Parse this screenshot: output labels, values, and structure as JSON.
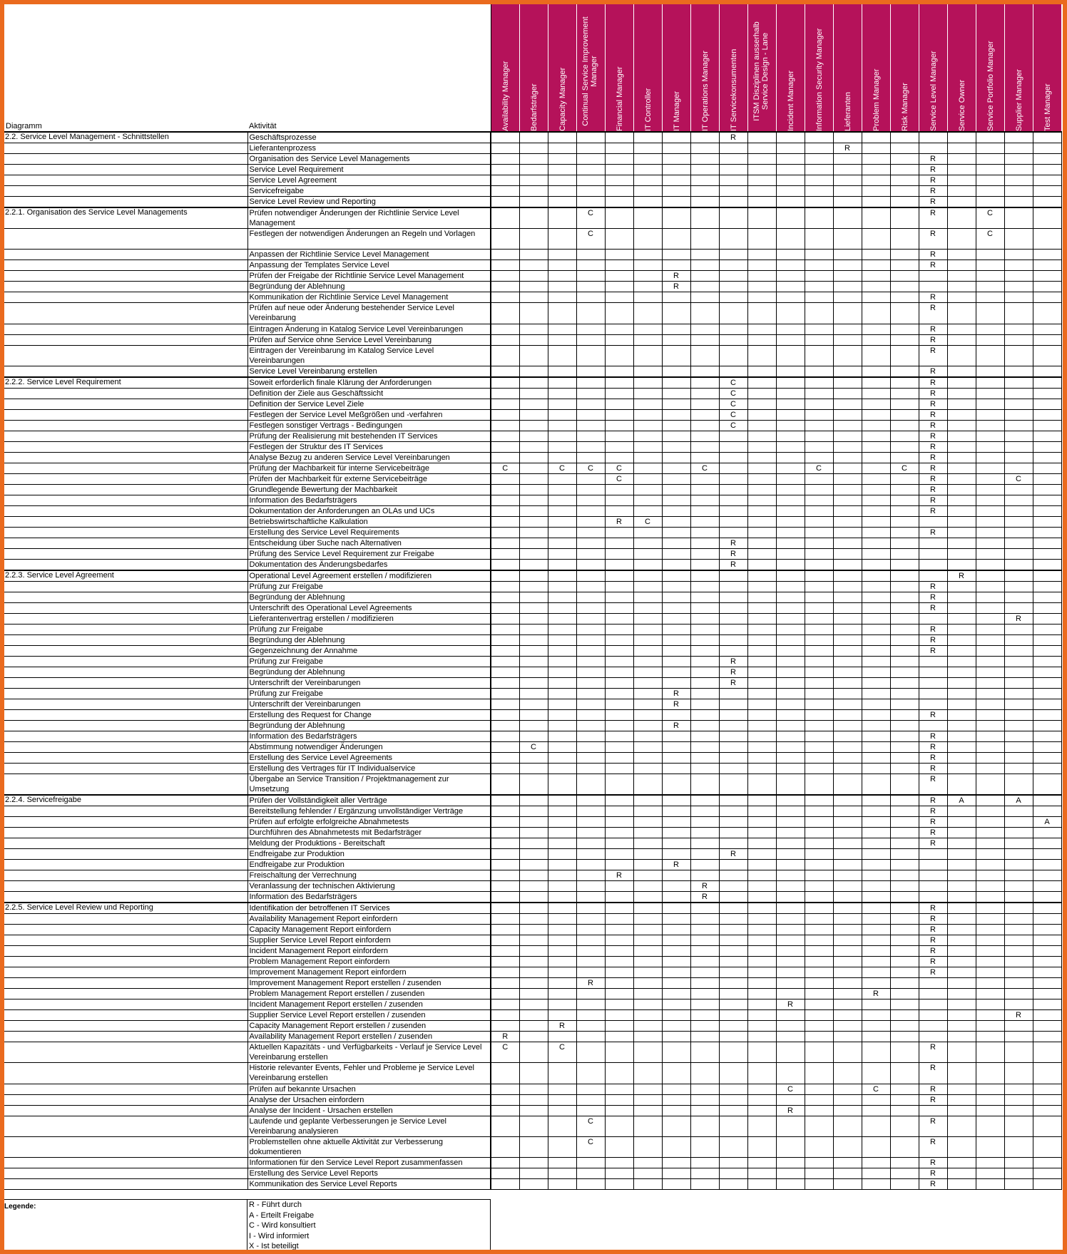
{
  "colors": {
    "frame": "#ea6a1e",
    "header_bg": "#b5125a",
    "header_text": "#ffffff"
  },
  "headers": {
    "diagram": "Diagramm",
    "activity": "Aktivität"
  },
  "roles": [
    "Availability Manager",
    "Bedarfsträger",
    "Capacity Manager",
    "Continual Service Improvement Manager",
    "Financial Manager",
    "IT Controller",
    "IT Manager",
    "IT Operations Manager",
    "IT Servicekonsumenten",
    "ITSM Disziplinen ausserhalb Service Design - Lane",
    "Incident Manager",
    "Information Security Manager",
    "Lieferanten",
    "Problem Manager",
    "Risk Manager",
    "Service Level Manager",
    "Service Owner",
    "Service Portfolio Manager",
    "Supplier Manager",
    "Test Manager"
  ],
  "rows": [
    {
      "d": "2.2. Service Level Management - Schnittstellen",
      "a": "Geschäftsprozesse",
      "r": {
        "8": "R"
      },
      "s": 1
    },
    {
      "d": "",
      "a": "Lieferantenprozess",
      "r": {
        "12": "R"
      }
    },
    {
      "d": "",
      "a": "Organisation des Service Level Managements",
      "r": {
        "15": "R"
      }
    },
    {
      "d": "",
      "a": "Service Level Requirement",
      "r": {
        "15": "R"
      }
    },
    {
      "d": "",
      "a": "Service Level Agreement",
      "r": {
        "15": "R"
      }
    },
    {
      "d": "",
      "a": "Servicefreigabe",
      "r": {
        "15": "R"
      }
    },
    {
      "d": "",
      "a": "Service Level Review und Reporting",
      "r": {
        "15": "R"
      }
    },
    {
      "d": "2.2.1. Organisation des Service Level Managements",
      "a": "Prüfen notwendiger Änderungen der Richtlinie Service Level Management",
      "r": {
        "3": "C",
        "15": "R",
        "17": "C"
      },
      "h": 2,
      "s": 1
    },
    {
      "d": "",
      "a": "Festlegen der notwendigen Änderungen an Regeln und Vorlagen",
      "r": {
        "3": "C",
        "15": "R",
        "17": "C"
      },
      "h": 2
    },
    {
      "d": "",
      "a": "Anpassen der Richtlinie Service Level Management",
      "r": {
        "15": "R"
      }
    },
    {
      "d": "",
      "a": "Anpassung der Templates Service Level",
      "r": {
        "15": "R"
      }
    },
    {
      "d": "",
      "a": "Prüfen der Freigabe der Richtlinie Service Level Management",
      "r": {
        "6": "R"
      }
    },
    {
      "d": "",
      "a": "Begründung der Ablehnung",
      "r": {
        "6": "R"
      }
    },
    {
      "d": "",
      "a": "Kommunikation der Richtlinie Service Level Management",
      "r": {
        "15": "R"
      }
    },
    {
      "d": "",
      "a": "Prüfen auf neue oder Änderung bestehender Service Level Vereinbarung",
      "r": {
        "15": "R"
      },
      "h": 2
    },
    {
      "d": "",
      "a": "Eintragen Änderung in Katalog Service Level Vereinbarungen",
      "r": {
        "15": "R"
      }
    },
    {
      "d": "",
      "a": "Prüfen auf Service ohne Service Level Vereinbarung",
      "r": {
        "15": "R"
      }
    },
    {
      "d": "",
      "a": "Eintragen der Vereinbarung im Katalog Service Level Vereinbarungen",
      "r": {
        "15": "R"
      },
      "h": 2
    },
    {
      "d": "",
      "a": "Service Level Vereinbarung erstellen",
      "r": {
        "15": "R"
      }
    },
    {
      "d": "2.2.2. Service Level Requirement",
      "a": "Soweit erforderlich finale Klärung der Anforderungen",
      "r": {
        "8": "C",
        "15": "R"
      },
      "s": 1
    },
    {
      "d": "",
      "a": "Definition der Ziele aus Geschäftssicht",
      "r": {
        "8": "C",
        "15": "R"
      }
    },
    {
      "d": "",
      "a": "Definition der Service Level Ziele",
      "r": {
        "8": "C",
        "15": "R"
      }
    },
    {
      "d": "",
      "a": "Festlegen der Service Level Meßgrößen und -verfahren",
      "r": {
        "8": "C",
        "15": "R"
      }
    },
    {
      "d": "",
      "a": "Festlegen sonstiger Vertrags - Bedingungen",
      "r": {
        "8": "C",
        "15": "R"
      }
    },
    {
      "d": "",
      "a": "Prüfung der Realisierung mit bestehenden IT Services",
      "r": {
        "15": "R"
      }
    },
    {
      "d": "",
      "a": "Festlegen der Struktur des IT Services",
      "r": {
        "15": "R"
      }
    },
    {
      "d": "",
      "a": "Analyse Bezug zu anderen Service Level Vereinbarungen",
      "r": {
        "15": "R"
      }
    },
    {
      "d": "",
      "a": "Prüfung der Machbarkeit für interne Servicebeiträge",
      "r": {
        "0": "C",
        "2": "C",
        "3": "C",
        "4": "C",
        "7": "C",
        "11": "C",
        "14": "C",
        "15": "R"
      }
    },
    {
      "d": "",
      "a": "Prüfen der Machbarkeit für externe Servicebeiträge",
      "r": {
        "4": "C",
        "15": "R",
        "18": "C"
      }
    },
    {
      "d": "",
      "a": "Grundlegende Bewertung der  Machbarkeit",
      "r": {
        "15": "R"
      }
    },
    {
      "d": "",
      "a": "Information des  Bedarfsträgers",
      "r": {
        "15": "R"
      }
    },
    {
      "d": "",
      "a": "Dokumentation der Anforderungen  an OLAs und UCs",
      "r": {
        "15": "R"
      }
    },
    {
      "d": "",
      "a": "Betriebswirtschaftliche Kalkulation",
      "r": {
        "4": "R",
        "5": "C"
      }
    },
    {
      "d": "",
      "a": "Erstellung des Service Level Requirements",
      "r": {
        "15": "R"
      }
    },
    {
      "d": "",
      "a": "Entscheidung über Suche nach Alternativen",
      "r": {
        "8": "R"
      }
    },
    {
      "d": "",
      "a": "Prüfung des Service Level Requirement zur Freigabe",
      "r": {
        "8": "R"
      }
    },
    {
      "d": "",
      "a": "Dokumentation des  Änderungsbedarfes",
      "r": {
        "8": "R"
      }
    },
    {
      "d": "2.2.3. Service Level Agreement",
      "a": "Operational Level Agreement erstellen / modifizieren",
      "r": {
        "16": "R"
      },
      "s": 1
    },
    {
      "d": "",
      "a": "Prüfung zur Freigabe",
      "r": {
        "15": "R"
      }
    },
    {
      "d": "",
      "a": "Begründung der Ablehnung",
      "r": {
        "15": "R"
      }
    },
    {
      "d": "",
      "a": "Unterschrift des  Operational  Level  Agreements",
      "r": {
        "15": "R"
      }
    },
    {
      "d": "",
      "a": "Lieferantenvertrag erstellen / modifizieren",
      "r": {
        "18": "R"
      }
    },
    {
      "d": "",
      "a": "Prüfung zur Freigabe",
      "r": {
        "15": "R"
      }
    },
    {
      "d": "",
      "a": "Begründung der Ablehnung",
      "r": {
        "15": "R"
      }
    },
    {
      "d": "",
      "a": "Gegenzeichnung der Annahme",
      "r": {
        "15": "R"
      }
    },
    {
      "d": "",
      "a": "Prüfung zur Freigabe",
      "r": {
        "8": "R"
      }
    },
    {
      "d": "",
      "a": "Begründung der Ablehnung",
      "r": {
        "8": "R"
      }
    },
    {
      "d": "",
      "a": "Unterschrift der Vereinbarungen",
      "r": {
        "8": "R"
      }
    },
    {
      "d": "",
      "a": "Prüfung zur Freigabe",
      "r": {
        "6": "R"
      }
    },
    {
      "d": "",
      "a": "Unterschrift der Vereinbarungen",
      "r": {
        "6": "R"
      }
    },
    {
      "d": "",
      "a": "Erstellung des Request for Change",
      "r": {
        "15": "R"
      }
    },
    {
      "d": "",
      "a": "Begründung der Ablehnung",
      "r": {
        "6": "R"
      }
    },
    {
      "d": "",
      "a": "Information des  Bedarfsträgers",
      "r": {
        "15": "R"
      }
    },
    {
      "d": "",
      "a": "Abstimmung notwendiger Änderungen",
      "r": {
        "1": "C",
        "15": "R"
      }
    },
    {
      "d": "",
      "a": "Erstellung des Service Level Agreements",
      "r": {
        "15": "R"
      }
    },
    {
      "d": "",
      "a": "Erstellung des Vertrages für IT  Individualservice",
      "r": {
        "15": "R"
      }
    },
    {
      "d": "",
      "a": "Übergabe an Service Transition / Projektmanagement zur Umsetzung",
      "r": {
        "15": "R"
      },
      "h": 2
    },
    {
      "d": "2.2.4. Servicefreigabe",
      "a": "Prüfen der Vollständigkeit aller Verträge",
      "r": {
        "15": "R",
        "16": "A",
        "18": "A"
      },
      "s": 1
    },
    {
      "d": "",
      "a": "Bereitstellung fehlender / Ergänzung unvollständiger Verträge",
      "r": {
        "15": "R"
      }
    },
    {
      "d": "",
      "a": "Prüfen auf erfolgte erfolgreiche Abnahmetests",
      "r": {
        "15": "R",
        "19": "A"
      }
    },
    {
      "d": "",
      "a": "Durchführen des Abnahmetests mit Bedarfsträger",
      "r": {
        "15": "R"
      }
    },
    {
      "d": "",
      "a": "Meldung der Produktions - Bereitschaft",
      "r": {
        "15": "R"
      }
    },
    {
      "d": "",
      "a": "Endfreigabe zur Produktion",
      "r": {
        "8": "R"
      }
    },
    {
      "d": "",
      "a": "Endfreigabe zur Produktion",
      "r": {
        "6": "R"
      }
    },
    {
      "d": "",
      "a": "Freischaltung der Verrechnung",
      "r": {
        "4": "R"
      }
    },
    {
      "d": "",
      "a": "Veranlassung der technischen  Aktivierung",
      "r": {
        "7": "R"
      }
    },
    {
      "d": "",
      "a": "Information des  Bedarfsträgers",
      "r": {
        "7": "R"
      }
    },
    {
      "d": "2.2.5. Service Level Review und Reporting",
      "a": "Identifikation der betroffenen IT Services",
      "r": {
        "15": "R"
      },
      "s": 1
    },
    {
      "d": "",
      "a": "Availability Management Report einfordern",
      "r": {
        "15": "R"
      }
    },
    {
      "d": "",
      "a": "Capacity Management  Report einfordern",
      "r": {
        "15": "R"
      }
    },
    {
      "d": "",
      "a": "Supplier Service Level Report einfordern",
      "r": {
        "15": "R"
      }
    },
    {
      "d": "",
      "a": "Incident Management Report einfordern",
      "r": {
        "15": "R"
      }
    },
    {
      "d": "",
      "a": "Problem Management Report einfordern",
      "r": {
        "15": "R"
      }
    },
    {
      "d": "",
      "a": "Improvement Management Report einfordern",
      "r": {
        "15": "R"
      }
    },
    {
      "d": "",
      "a": "Improvement Management Report erstellen / zusenden",
      "r": {
        "3": "R"
      }
    },
    {
      "d": "",
      "a": "Problem Management Report erstellen / zusenden",
      "r": {
        "13": "R"
      }
    },
    {
      "d": "",
      "a": "Incident Management Report erstellen / zusenden",
      "r": {
        "10": "R"
      }
    },
    {
      "d": "",
      "a": "Supplier Service Level Report erstellen / zusenden",
      "r": {
        "18": "R"
      }
    },
    {
      "d": "",
      "a": "Capacity Management  Report erstellen / zusenden",
      "r": {
        "2": "R"
      }
    },
    {
      "d": "",
      "a": "Availability Management Report erstellen / zusenden",
      "r": {
        "0": "R"
      }
    },
    {
      "d": "",
      "a": "Aktuellen Kapazitäts - und Verfügbarkeits - Verlauf je Service Level Vereinbarung erstellen",
      "r": {
        "0": "C",
        "2": "C",
        "15": "R"
      },
      "h": 2
    },
    {
      "d": "",
      "a": "Historie relevanter Events, Fehler und Probleme je Service Level Vereinbarung erstellen",
      "r": {
        "15": "R"
      },
      "h": 2
    },
    {
      "d": "",
      "a": "Prüfen auf bekannte Ursachen",
      "r": {
        "10": "C",
        "13": "C",
        "15": "R"
      }
    },
    {
      "d": "",
      "a": "Analyse der Ursachen einfordern",
      "r": {
        "15": "R"
      }
    },
    {
      "d": "",
      "a": "Analyse der Incident - Ursachen erstellen",
      "r": {
        "10": "R"
      }
    },
    {
      "d": "",
      "a": "Laufende und geplante Verbesserungen je Service Level Vereinbarung analysieren",
      "r": {
        "3": "C",
        "15": "R"
      },
      "h": 2
    },
    {
      "d": "",
      "a": "Problemstellen ohne aktuelle Aktivität zur Verbesserung dokumentieren",
      "r": {
        "3": "C",
        "15": "R"
      },
      "h": 2
    },
    {
      "d": "",
      "a": "Informationen für den Service Level Report zusammenfassen",
      "r": {
        "15": "R"
      }
    },
    {
      "d": "",
      "a": "Erstellung des Service Level Reports",
      "r": {
        "15": "R"
      }
    },
    {
      "d": "",
      "a": "Kommunikation des Service Level Reports",
      "r": {
        "15": "R"
      }
    }
  ],
  "legend": {
    "title": "Legende:",
    "items": [
      "R - Führt durch",
      "A - Erteilt Freigabe",
      "C - Wird konsultiert",
      "I - Wird informiert",
      "X - Ist beteiligt"
    ]
  }
}
